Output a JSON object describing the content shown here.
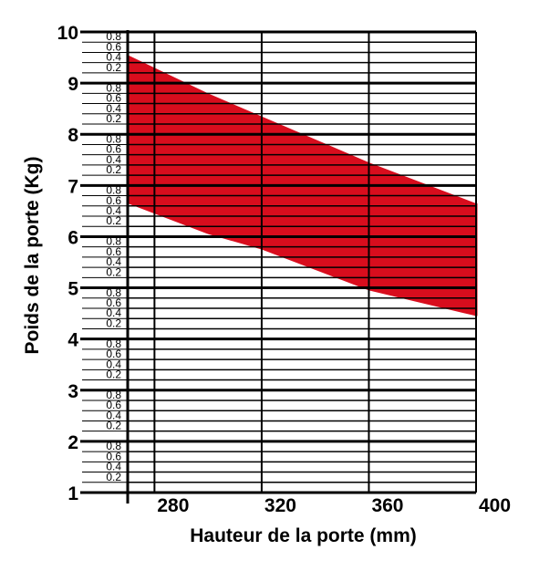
{
  "chart_data": {
    "type": "area",
    "xlabel": "Hauteur de la porte (mm)",
    "ylabel": "Poids de la porte (Kg)",
    "xlim": [
      270,
      400
    ],
    "ylim": [
      1,
      10
    ],
    "x_ticks": [
      "280",
      "320",
      "360",
      "400"
    ],
    "y_major_ticks": [
      "1",
      "2",
      "3",
      "4",
      "5",
      "6",
      "7",
      "8",
      "9",
      "10"
    ],
    "y_minor_ticks": [
      "0.2",
      "0.4",
      "0.6",
      "0.8"
    ],
    "grid": true,
    "series": [
      {
        "x": [
          270,
          300,
          320,
          360,
          400
        ],
        "upper": [
          9.55,
          8.8,
          8.35,
          7.45,
          6.65
        ],
        "lower": [
          6.65,
          6.05,
          5.75,
          4.95,
          4.45
        ],
        "color": "#d80d1d"
      }
    ]
  }
}
